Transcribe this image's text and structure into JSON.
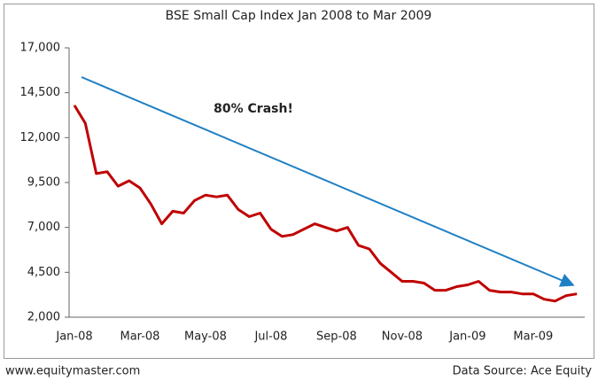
{
  "chart_data": {
    "type": "line",
    "title": "BSE Small Cap Index Jan 2008 to Mar 2009",
    "annotation": "80% Crash!",
    "source": "Data Source: Ace Equity",
    "website": "www.equitymaster.com",
    "categories": [
      "Jan-08",
      null,
      null,
      null,
      null,
      null,
      "Mar-08",
      null,
      null,
      null,
      null,
      null,
      "May-08",
      null,
      null,
      null,
      null,
      null,
      "Jul-08",
      null,
      null,
      null,
      null,
      null,
      "Sep-08",
      null,
      null,
      null,
      null,
      null,
      "Nov-08",
      null,
      null,
      null,
      null,
      null,
      "Jan-09",
      null,
      null,
      null,
      null,
      null,
      "Mar-09",
      null,
      null,
      null,
      null
    ],
    "series": [
      {
        "name": "BSE Small Cap Index",
        "color": "#c00000",
        "values": [
          13800,
          12800,
          10000,
          10100,
          9300,
          9600,
          9200,
          8300,
          7200,
          7900,
          7800,
          8500,
          8800,
          8700,
          8800,
          8000,
          7600,
          7800,
          6900,
          6500,
          6600,
          6900,
          7200,
          7000,
          6800,
          7000,
          6000,
          5800,
          5000,
          4500,
          4000,
          4000,
          3900,
          3500,
          3500,
          3700,
          3800,
          4000,
          3500,
          3400,
          3400,
          3300,
          3300,
          3000,
          2900,
          3200,
          3300
        ]
      }
    ],
    "ylim": [
      2000,
      17000
    ],
    "yticks": [
      {
        "value": 2000,
        "label": "2,000"
      },
      {
        "value": 4500,
        "label": "4,500"
      },
      {
        "value": 7000,
        "label": "7,000"
      },
      {
        "value": 9500,
        "label": "9,500"
      },
      {
        "value": 12000,
        "label": "12,000"
      },
      {
        "value": 14500,
        "label": "14,500"
      },
      {
        "value": 17000,
        "label": "17,000"
      }
    ],
    "grid": false,
    "trend_color": "#1f7fc4"
  }
}
